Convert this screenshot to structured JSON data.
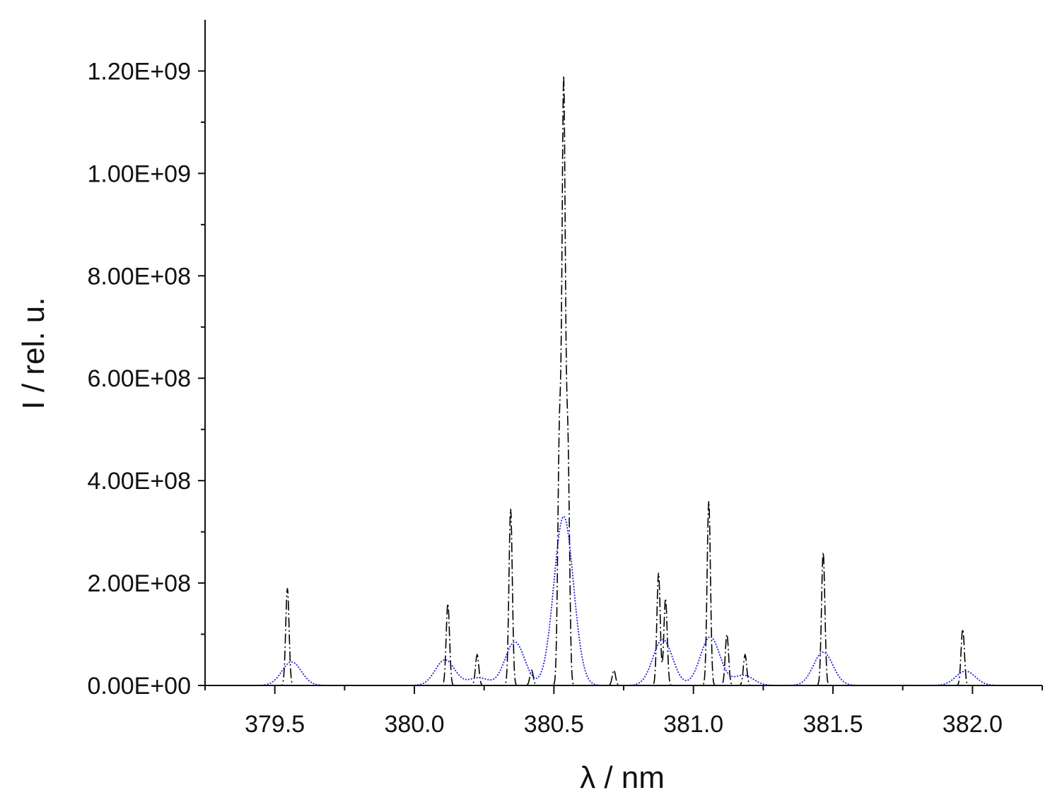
{
  "chart_data": {
    "type": "line",
    "xlabel": "λ / nm",
    "ylabel": "I / rel. u.",
    "xlim": [
      379.25,
      382.25
    ],
    "ylim": [
      0,
      1300000000.0
    ],
    "x_ticks": [
      379.5,
      380.0,
      380.5,
      381.0,
      381.5,
      382.0
    ],
    "x_tick_labels": [
      "379.5",
      "380.0",
      "380.5",
      "381.0",
      "381.5",
      "382.0"
    ],
    "y_ticks": [
      0,
      200000000.0,
      400000000.0,
      600000000.0,
      800000000.0,
      1000000000.0,
      1200000000.0
    ],
    "y_tick_labels": [
      "0.00E+00",
      "2.00E+08",
      "4.00E+08",
      "6.00E+08",
      "8.00E+08",
      "1.00E+09",
      "1.20E+09"
    ],
    "grid": false,
    "legend": "none",
    "series": [
      {
        "style": "dash-dot",
        "color": "#000000",
        "peaks": [
          {
            "x": 379.545,
            "y": 190000000.0
          },
          {
            "x": 380.12,
            "y": 160000000.0
          },
          {
            "x": 380.225,
            "y": 60000000.0
          },
          {
            "x": 380.345,
            "y": 345000000.0
          },
          {
            "x": 380.42,
            "y": 30000000.0
          },
          {
            "x": 380.52,
            "y": 480000000.0
          },
          {
            "x": 380.535,
            "y": 1150000000.0
          },
          {
            "x": 380.55,
            "y": 460000000.0
          },
          {
            "x": 380.715,
            "y": 30000000.0
          },
          {
            "x": 380.875,
            "y": 220000000.0
          },
          {
            "x": 380.9,
            "y": 170000000.0
          },
          {
            "x": 381.055,
            "y": 360000000.0
          },
          {
            "x": 381.12,
            "y": 100000000.0
          },
          {
            "x": 381.185,
            "y": 60000000.0
          },
          {
            "x": 381.465,
            "y": 260000000.0
          },
          {
            "x": 381.965,
            "y": 110000000.0
          }
        ]
      },
      {
        "style": "dotted",
        "color": "#1f1fd8",
        "peaks": [
          {
            "x": 379.56,
            "y": 46000000.0
          },
          {
            "x": 380.11,
            "y": 50000000.0
          },
          {
            "x": 380.23,
            "y": 15000000.0
          },
          {
            "x": 380.36,
            "y": 85000000.0
          },
          {
            "x": 380.535,
            "y": 330000000.0
          },
          {
            "x": 380.89,
            "y": 90000000.0
          },
          {
            "x": 381.06,
            "y": 95000000.0
          },
          {
            "x": 381.18,
            "y": 20000000.0
          },
          {
            "x": 381.465,
            "y": 65000000.0
          },
          {
            "x": 381.975,
            "y": 28000000.0
          }
        ]
      }
    ]
  }
}
